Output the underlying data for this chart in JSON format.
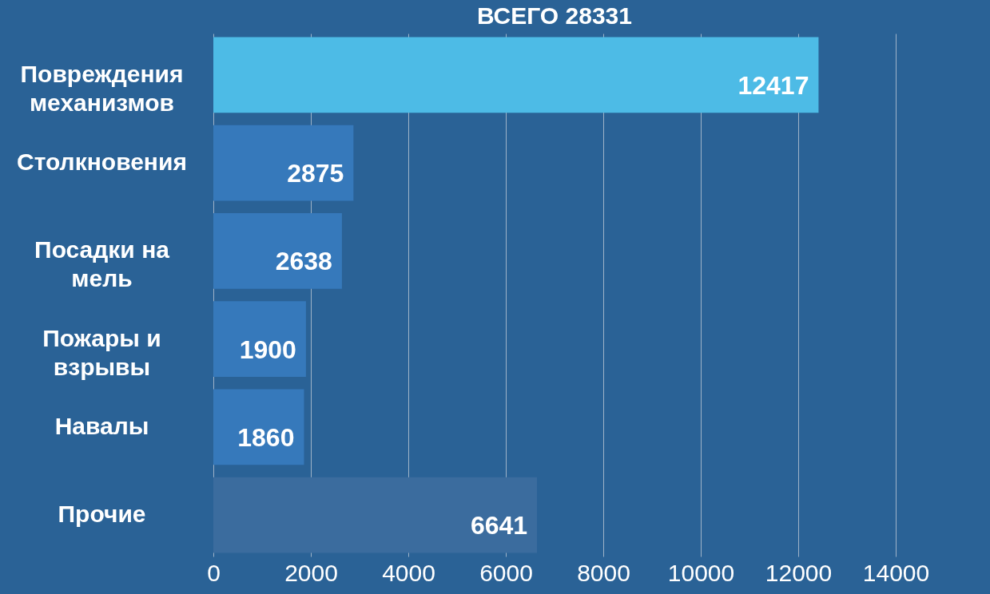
{
  "chart_data": {
    "type": "bar",
    "orientation": "horizontal",
    "title": "ВСЕГО 28331",
    "categories": [
      "Повреждения механизмов",
      "Столкновения",
      "Посадки на мель",
      "Пожары и взрывы",
      "Навалы",
      "Прочие"
    ],
    "values": [
      12417,
      2875,
      2638,
      1900,
      1860,
      6641
    ],
    "colors": [
      "#4dbbe6",
      "#3679bb",
      "#3679bb",
      "#3679bb",
      "#3679bb",
      "#3b6c9e"
    ],
    "xlim": [
      0,
      14000
    ],
    "xticks": [
      0,
      2000,
      4000,
      6000,
      8000,
      10000,
      12000,
      14000
    ],
    "grid": "x",
    "data_labels": true
  }
}
